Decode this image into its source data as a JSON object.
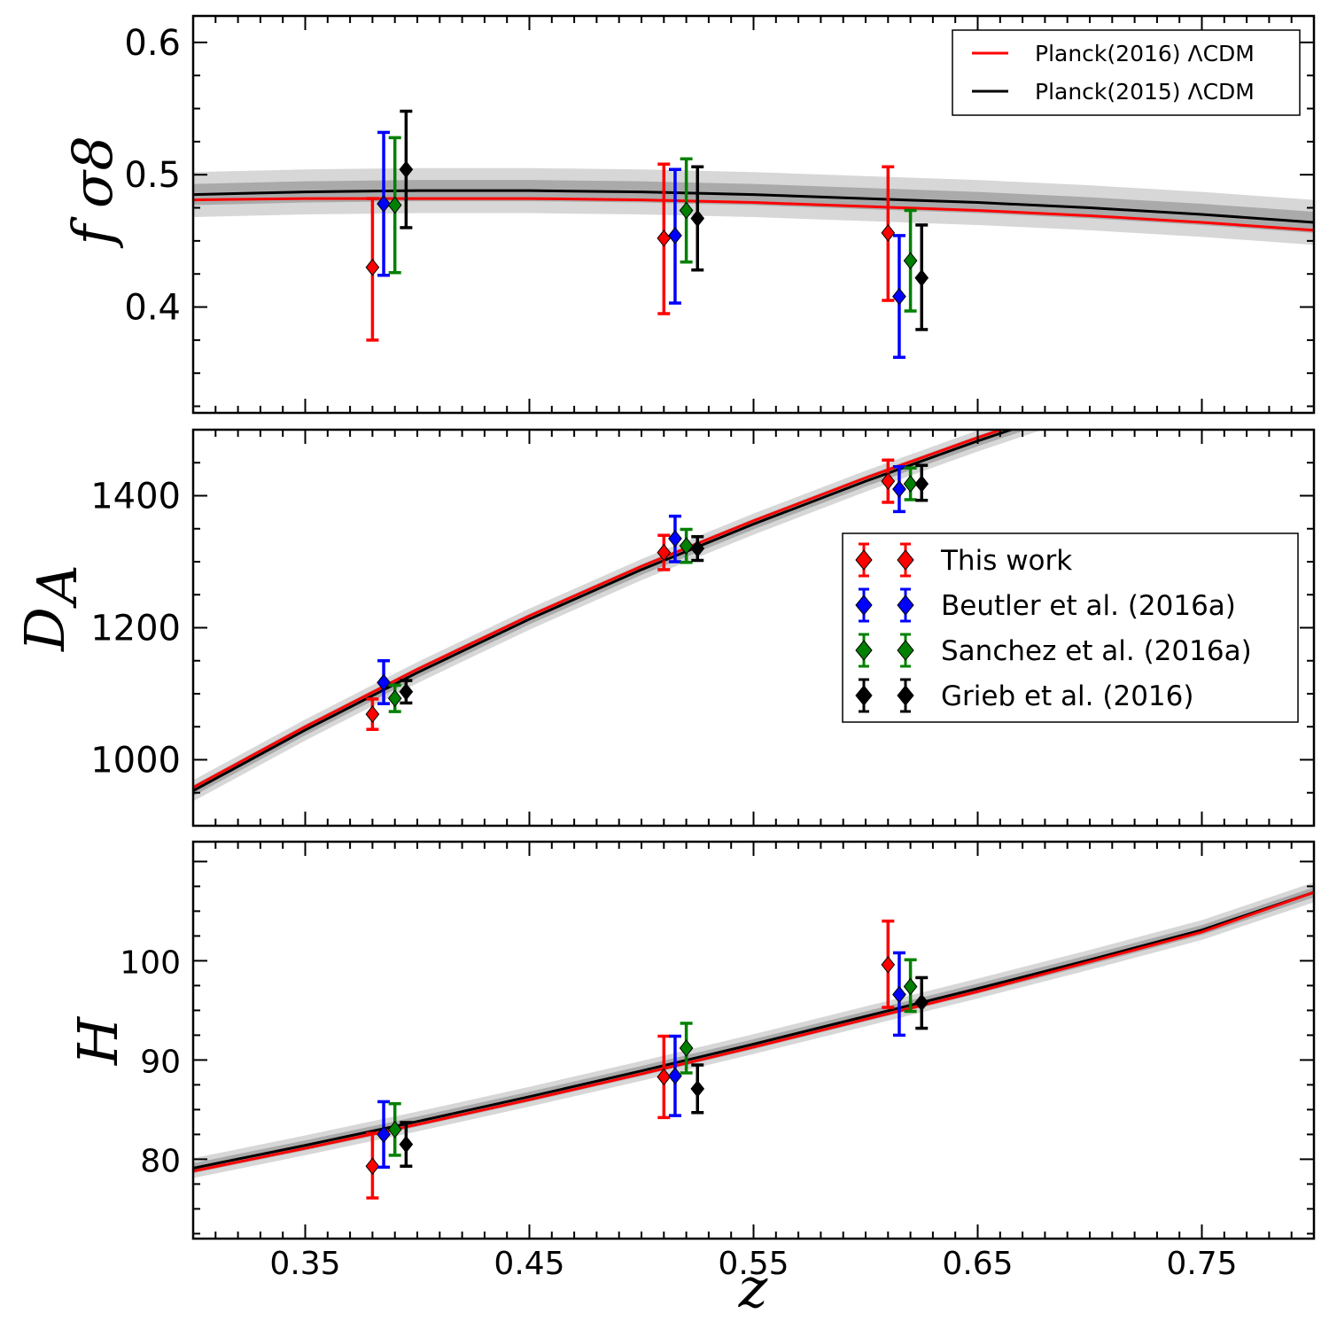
{
  "chart_data": [
    {
      "type": "line",
      "panel": "top",
      "ylabel": "f",
      "ylabel_sub": "σ8",
      "xlim": [
        0.3,
        0.8
      ],
      "ylim": [
        0.32,
        0.62
      ],
      "yticks": [
        0.4,
        0.5,
        0.6
      ],
      "ytick_labels": [
        "0.4",
        "0.5",
        "0.6"
      ],
      "legend": {
        "placement": "top-right",
        "entries": [
          {
            "label": "Planck(2016) ΛCDM",
            "color": "#ff0000"
          },
          {
            "label": "Planck(2015) ΛCDM",
            "color": "#000000"
          }
        ]
      },
      "model": {
        "x": [
          0.3,
          0.35,
          0.4,
          0.45,
          0.5,
          0.55,
          0.6,
          0.65,
          0.7,
          0.75,
          0.8
        ],
        "planck2016": [
          0.481,
          0.482,
          0.482,
          0.482,
          0.481,
          0.479,
          0.476,
          0.473,
          0.469,
          0.464,
          0.458
        ],
        "planck2015": [
          0.485,
          0.487,
          0.488,
          0.488,
          0.487,
          0.485,
          0.482,
          0.479,
          0.475,
          0.47,
          0.464
        ],
        "band1": [
          0.008,
          0.008,
          0.008,
          0.008,
          0.008,
          0.008,
          0.008,
          0.008,
          0.008,
          0.008,
          0.008
        ],
        "band2": [
          0.017,
          0.017,
          0.017,
          0.017,
          0.017,
          0.017,
          0.017,
          0.017,
          0.017,
          0.017,
          0.017
        ]
      },
      "series": [
        {
          "name": "This work",
          "color": "#ff0000",
          "points": [
            {
              "x": 0.38,
              "y": 0.43,
              "lo": 0.375,
              "hi": 0.482
            },
            {
              "x": 0.51,
              "y": 0.452,
              "lo": 0.395,
              "hi": 0.508
            },
            {
              "x": 0.61,
              "y": 0.456,
              "lo": 0.405,
              "hi": 0.506
            }
          ]
        },
        {
          "name": "Beutler et al. (2016a)",
          "color": "#0000ff",
          "points": [
            {
              "x": 0.385,
              "y": 0.478,
              "lo": 0.424,
              "hi": 0.532
            },
            {
              "x": 0.515,
              "y": 0.454,
              "lo": 0.403,
              "hi": 0.504
            },
            {
              "x": 0.615,
              "y": 0.408,
              "lo": 0.362,
              "hi": 0.454
            }
          ]
        },
        {
          "name": "Sanchez et al. (2016a)",
          "color": "#008000",
          "points": [
            {
              "x": 0.39,
              "y": 0.477,
              "lo": 0.426,
              "hi": 0.528
            },
            {
              "x": 0.52,
              "y": 0.473,
              "lo": 0.434,
              "hi": 0.512
            },
            {
              "x": 0.62,
              "y": 0.435,
              "lo": 0.397,
              "hi": 0.473
            }
          ]
        },
        {
          "name": "Grieb et al. (2016)",
          "color": "#000000",
          "points": [
            {
              "x": 0.395,
              "y": 0.504,
              "lo": 0.46,
              "hi": 0.548
            },
            {
              "x": 0.525,
              "y": 0.467,
              "lo": 0.428,
              "hi": 0.506
            },
            {
              "x": 0.625,
              "y": 0.422,
              "lo": 0.383,
              "hi": 0.462
            }
          ]
        }
      ]
    },
    {
      "type": "line",
      "panel": "middle",
      "ylabel": "D",
      "ylabel_sub": "A",
      "xlim": [
        0.3,
        0.8
      ],
      "ylim": [
        900,
        1500
      ],
      "yticks": [
        1000,
        1200,
        1400
      ],
      "ytick_labels": [
        "1000",
        "1200",
        "1400"
      ],
      "legend": {
        "placement": "center-right",
        "entries": [
          {
            "label": "This work",
            "color": "#ff0000"
          },
          {
            "label": "Beutler et al. (2016a)",
            "color": "#0000ff"
          },
          {
            "label": "Sanchez et al. (2016a)",
            "color": "#008000"
          },
          {
            "label": "Grieb et al. (2016)",
            "color": "#000000"
          }
        ]
      },
      "model": {
        "x": [
          0.3,
          0.35,
          0.4,
          0.45,
          0.5,
          0.55,
          0.6,
          0.65,
          0.7
        ],
        "planck2016": [
          958,
          1050,
          1137,
          1218,
          1293,
          1362,
          1427,
          1488,
          1545
        ],
        "planck2015": [
          953,
          1045,
          1132,
          1213,
          1288,
          1357,
          1422,
          1483,
          1540
        ],
        "band1": [
          8,
          8,
          8,
          8,
          8,
          8,
          8,
          8,
          8
        ],
        "band2": [
          16,
          16,
          16,
          16,
          16,
          16,
          16,
          16,
          16
        ]
      },
      "series": [
        {
          "name": "This work",
          "color": "#ff0000",
          "points": [
            {
              "x": 0.38,
              "y": 1069,
              "lo": 1046,
              "hi": 1092
            },
            {
              "x": 0.51,
              "y": 1314,
              "lo": 1288,
              "hi": 1340
            },
            {
              "x": 0.61,
              "y": 1422,
              "lo": 1390,
              "hi": 1454
            }
          ]
        },
        {
          "name": "Beutler et al. (2016a)",
          "color": "#0000ff",
          "points": [
            {
              "x": 0.385,
              "y": 1117,
              "lo": 1085,
              "hi": 1150
            },
            {
              "x": 0.515,
              "y": 1335,
              "lo": 1300,
              "hi": 1369
            },
            {
              "x": 0.615,
              "y": 1410,
              "lo": 1376,
              "hi": 1444
            }
          ]
        },
        {
          "name": "Sanchez et al. (2016a)",
          "color": "#008000",
          "points": [
            {
              "x": 0.39,
              "y": 1093,
              "lo": 1073,
              "hi": 1113
            },
            {
              "x": 0.52,
              "y": 1324,
              "lo": 1299,
              "hi": 1349
            },
            {
              "x": 0.62,
              "y": 1418,
              "lo": 1394,
              "hi": 1442
            }
          ]
        },
        {
          "name": "Grieb et al. (2016)",
          "color": "#000000",
          "points": [
            {
              "x": 0.395,
              "y": 1103,
              "lo": 1086,
              "hi": 1120
            },
            {
              "x": 0.525,
              "y": 1320,
              "lo": 1302,
              "hi": 1338
            },
            {
              "x": 0.625,
              "y": 1418,
              "lo": 1393,
              "hi": 1446
            }
          ]
        }
      ]
    },
    {
      "type": "line",
      "panel": "bottom",
      "ylabel": "H",
      "xlabel": "z",
      "xlim": [
        0.3,
        0.8
      ],
      "ylim": [
        72,
        112
      ],
      "yticks": [
        80,
        90,
        100
      ],
      "ytick_labels": [
        "80",
        "90",
        "100"
      ],
      "xticks": [
        0.35,
        0.45,
        0.55,
        0.65,
        0.75
      ],
      "xtick_labels": [
        "0.35",
        "0.45",
        "0.55",
        "0.65",
        "0.75"
      ],
      "model": {
        "x": [
          0.3,
          0.35,
          0.4,
          0.45,
          0.5,
          0.55,
          0.6,
          0.65,
          0.7,
          0.75,
          0.8
        ],
        "planck2016": [
          78.8,
          81.1,
          83.5,
          86.0,
          88.6,
          91.3,
          94.1,
          96.9,
          99.9,
          102.9,
          106.9
        ],
        "planck2015": [
          79.1,
          81.4,
          83.8,
          86.3,
          88.9,
          91.6,
          94.4,
          97.2,
          100.1,
          103.1,
          106.9
        ],
        "band1": [
          0.5,
          0.5,
          0.5,
          0.5,
          0.5,
          0.5,
          0.5,
          0.5,
          0.5,
          0.5,
          0.5
        ],
        "band2": [
          1.0,
          1.0,
          1.0,
          1.0,
          1.0,
          1.0,
          1.0,
          1.0,
          1.0,
          1.0,
          1.0
        ]
      },
      "series": [
        {
          "name": "This work",
          "color": "#ff0000",
          "points": [
            {
              "x": 0.38,
              "y": 79.3,
              "lo": 76.1,
              "hi": 82.6
            },
            {
              "x": 0.51,
              "y": 88.3,
              "lo": 84.2,
              "hi": 92.4
            },
            {
              "x": 0.61,
              "y": 99.6,
              "lo": 95.3,
              "hi": 104.0
            }
          ]
        },
        {
          "name": "Beutler et al. (2016a)",
          "color": "#0000ff",
          "points": [
            {
              "x": 0.385,
              "y": 82.5,
              "lo": 79.2,
              "hi": 85.8
            },
            {
              "x": 0.515,
              "y": 88.4,
              "lo": 84.4,
              "hi": 92.4
            },
            {
              "x": 0.615,
              "y": 96.6,
              "lo": 92.5,
              "hi": 100.8
            }
          ]
        },
        {
          "name": "Sanchez et al. (2016a)",
          "color": "#008000",
          "points": [
            {
              "x": 0.39,
              "y": 83.0,
              "lo": 80.4,
              "hi": 85.6
            },
            {
              "x": 0.52,
              "y": 91.2,
              "lo": 88.7,
              "hi": 93.7
            },
            {
              "x": 0.62,
              "y": 97.4,
              "lo": 94.9,
              "hi": 100.1
            }
          ]
        },
        {
          "name": "Grieb et al. (2016)",
          "color": "#000000",
          "points": [
            {
              "x": 0.395,
              "y": 81.5,
              "lo": 79.3,
              "hi": 83.7
            },
            {
              "x": 0.525,
              "y": 87.1,
              "lo": 84.7,
              "hi": 89.5
            },
            {
              "x": 0.625,
              "y": 95.8,
              "lo": 93.2,
              "hi": 98.3
            }
          ]
        }
      ]
    }
  ]
}
